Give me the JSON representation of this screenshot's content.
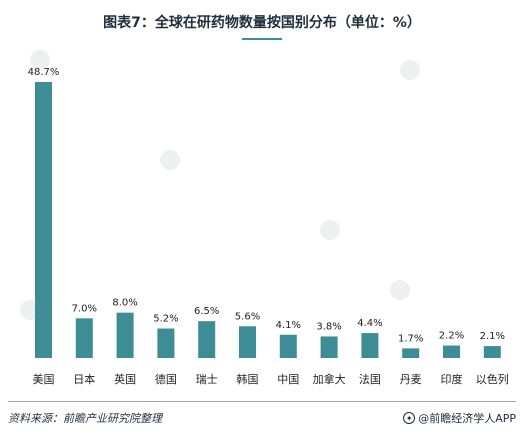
{
  "title": "图表7：全球在研药物数量按国别分布（单位：%）",
  "source": "资料来源：前瞻产业研究院整理",
  "brand": {
    "icon_name": "wechat-icon",
    "text": "@前瞻经济学人APP"
  },
  "colors": {
    "bar": "#3c8d96",
    "accent": "#3a8f99"
  },
  "chart_data": {
    "type": "bar",
    "title": "图表7：全球在研药物数量按国别分布（单位：%）",
    "unit": "%",
    "categories": [
      "美国",
      "日本",
      "英国",
      "德国",
      "瑞士",
      "韩国",
      "中国",
      "加拿大",
      "法国",
      "丹麦",
      "印度",
      "以色列"
    ],
    "values": [
      48.7,
      7.0,
      8.0,
      5.2,
      6.5,
      5.6,
      4.1,
      3.8,
      4.4,
      1.7,
      2.2,
      2.1
    ],
    "value_labels": [
      "48.7%",
      "7.0%",
      "8.0%",
      "5.2%",
      "6.5%",
      "5.6%",
      "4.1%",
      "3.8%",
      "4.4%",
      "1.7%",
      "2.2%",
      "2.1%"
    ],
    "ylim": [
      0,
      48.7
    ],
    "grid": false,
    "xlabel": "",
    "ylabel": ""
  }
}
